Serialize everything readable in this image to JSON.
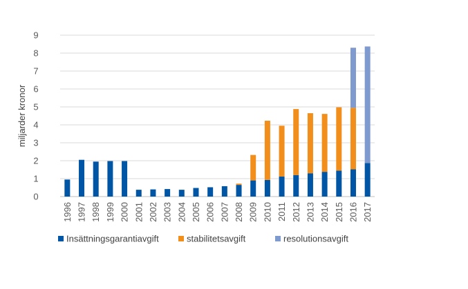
{
  "chart_data": {
    "type": "bar",
    "stacked": true,
    "title": "",
    "xlabel": "",
    "ylabel": "miljarder kronor",
    "ylim": [
      0,
      9
    ],
    "yticks": [
      "0",
      "1",
      "2",
      "3",
      "4",
      "5",
      "6",
      "7",
      "8",
      "9"
    ],
    "grid": true,
    "legend_position": "bottom",
    "categories": [
      "1996",
      "1997",
      "1998",
      "1999",
      "2000",
      "2001",
      "2002",
      "2003",
      "2004",
      "2005",
      "2006",
      "2007",
      "2008",
      "2009",
      "2010",
      "2011",
      "2012",
      "2013",
      "2014",
      "2015",
      "2016",
      "2017"
    ],
    "series": [
      {
        "name": "Insättningsgarantiavgift",
        "color": "#0055A4",
        "values": [
          0.95,
          2.05,
          1.95,
          1.98,
          1.98,
          0.38,
          0.4,
          0.42,
          0.38,
          0.48,
          0.52,
          0.58,
          0.65,
          0.9,
          0.93,
          1.12,
          1.2,
          1.3,
          1.38,
          1.45,
          1.52,
          1.87
        ]
      },
      {
        "name": "stabilitetsavgift",
        "color": "#F28E1C",
        "values": [
          0,
          0,
          0,
          0,
          0,
          0,
          0,
          0,
          0,
          0,
          0,
          0,
          0.07,
          1.42,
          3.3,
          2.83,
          3.68,
          3.35,
          3.23,
          3.53,
          3.43,
          0
        ]
      },
      {
        "name": "resolutionsavgift",
        "color": "#7F9ACF",
        "values": [
          0,
          0,
          0,
          0,
          0,
          0,
          0,
          0,
          0,
          0,
          0,
          0,
          0,
          0,
          0,
          0,
          0,
          0,
          0,
          0,
          3.35,
          6.5
        ]
      }
    ]
  }
}
